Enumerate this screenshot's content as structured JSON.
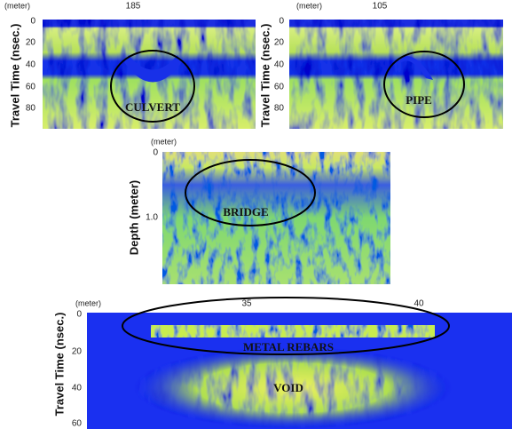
{
  "panels": [
    {
      "x_unit": "(meter)",
      "x_ticks": [
        185
      ],
      "y_label": "Travel Time (nsec.)",
      "y_ticks": [
        0,
        20,
        40,
        60,
        80
      ],
      "annotations": [
        "CULVERT"
      ]
    },
    {
      "x_unit": "(meter)",
      "x_ticks": [
        105
      ],
      "y_label": "Travel Time (nsec.)",
      "y_ticks": [
        0,
        20,
        40,
        60,
        80
      ],
      "annotations": [
        "PIPE"
      ]
    },
    {
      "x_unit": "(meter)",
      "x_ticks": [],
      "y_label": "Depth (meter)",
      "y_ticks": [
        0,
        "1.0"
      ],
      "annotations": [
        "BRIDGE"
      ]
    },
    {
      "x_unit": "(meter)",
      "x_ticks": [
        35,
        40
      ],
      "y_label": "Travel Time (nsec.)",
      "y_ticks": [
        0,
        20,
        40,
        60
      ],
      "annotations": [
        "METAL REBARS",
        "VOID"
      ]
    }
  ]
}
